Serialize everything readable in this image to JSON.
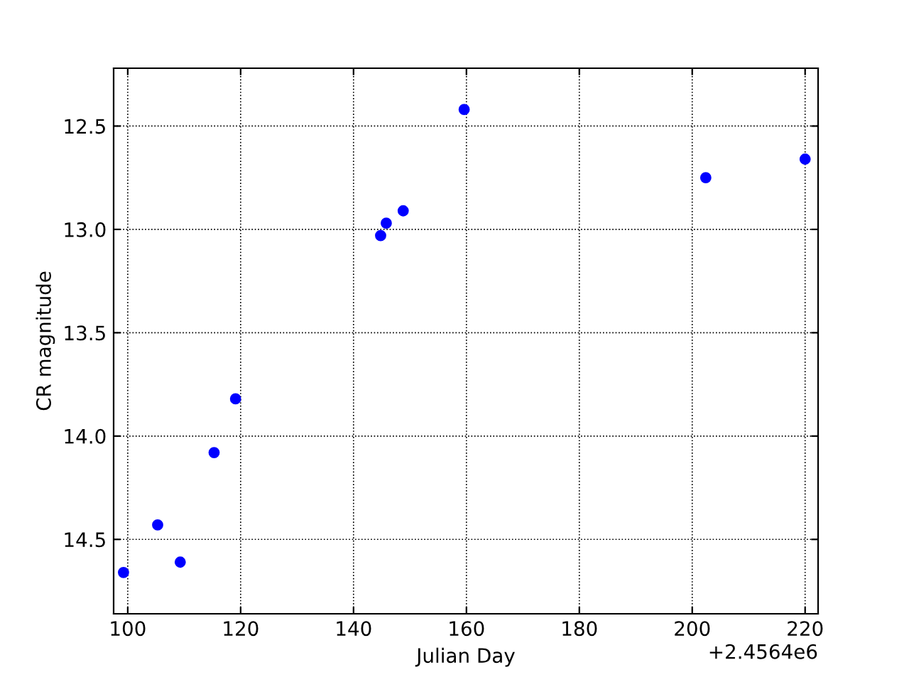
{
  "chart_data": {
    "type": "scatter",
    "xlabel": "Julian Day",
    "ylabel": "CR magnitude",
    "x": [
      99.25,
      105.3,
      109.3,
      115.3,
      119.1,
      144.8,
      145.8,
      148.8,
      159.6,
      202.4,
      220.0
    ],
    "series": [
      {
        "color": "#0000ff",
        "values": [
          14.66,
          14.43,
          14.61,
          14.08,
          13.82,
          13.03,
          12.97,
          12.91,
          12.42,
          12.75,
          12.66
        ]
      }
    ],
    "xlim": [
      97.5,
      222.3
    ],
    "ylim": [
      14.86,
      12.22
    ],
    "xticks": [
      100,
      120,
      140,
      160,
      180,
      200,
      220
    ],
    "yticks": [
      {
        "value": 12.5,
        "label": "12.5"
      },
      {
        "value": 13.0,
        "label": "13.0"
      },
      {
        "value": 13.5,
        "label": "13.5"
      },
      {
        "value": 14.0,
        "label": "14.0"
      },
      {
        "value": 14.5,
        "label": "14.5"
      }
    ],
    "annotations": [
      "+2.4564e6"
    ],
    "grid": true,
    "marker": "circle",
    "legend": false
  }
}
